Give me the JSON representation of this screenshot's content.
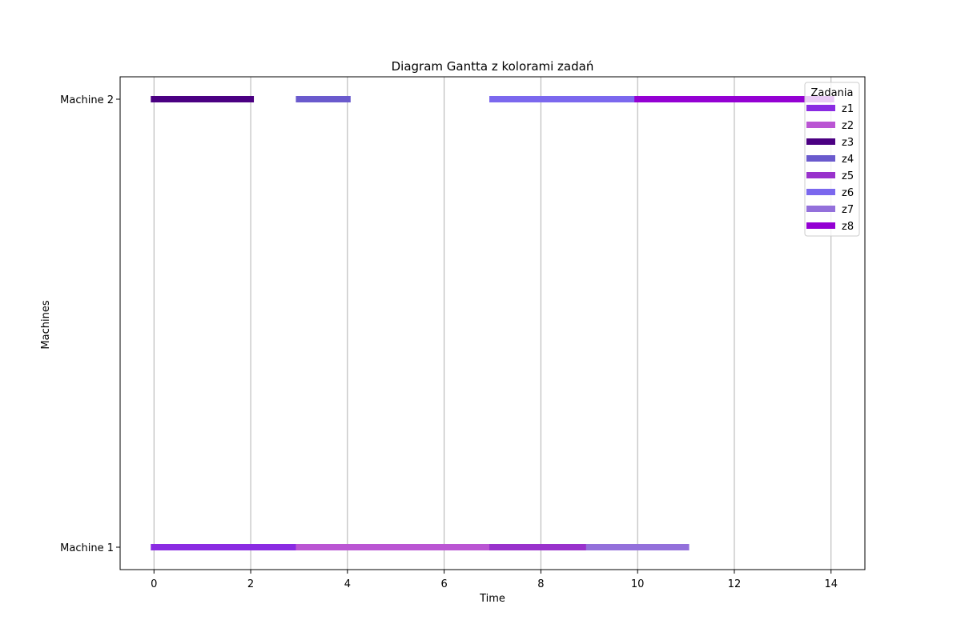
{
  "chart_data": {
    "type": "gantt",
    "title": "Diagram Gantta z kolorami zadań",
    "xlabel": "Time",
    "ylabel": "Machines",
    "xlim": [
      -0.7,
      14.7
    ],
    "xticks": [
      0,
      2,
      4,
      6,
      8,
      10,
      12,
      14
    ],
    "grid": "vertical",
    "machines": [
      "Machine 1",
      "Machine 2"
    ],
    "legend": {
      "title": "Zadania",
      "placement": "top-right",
      "entries": [
        "z1",
        "z2",
        "z3",
        "z4",
        "z5",
        "z6",
        "z7",
        "z8"
      ]
    },
    "task_colors": {
      "z1": "#8a2be2",
      "z2": "#ba55d3",
      "z3": "#4b0082",
      "z4": "#6a5acd",
      "z5": "#9932cc",
      "z6": "#7b68ee",
      "z7": "#9370db",
      "z8": "#9400d3"
    },
    "segments": [
      {
        "machine": "Machine 1",
        "task": "z1",
        "start": 0,
        "end": 3
      },
      {
        "machine": "Machine 1",
        "task": "z2",
        "start": 3,
        "end": 7
      },
      {
        "machine": "Machine 1",
        "task": "z5",
        "start": 7,
        "end": 9
      },
      {
        "machine": "Machine 1",
        "task": "z7",
        "start": 9,
        "end": 11
      },
      {
        "machine": "Machine 2",
        "task": "z3",
        "start": 0,
        "end": 2
      },
      {
        "machine": "Machine 2",
        "task": "z4",
        "start": 3,
        "end": 4
      },
      {
        "machine": "Machine 2",
        "task": "z6",
        "start": 7,
        "end": 10
      },
      {
        "machine": "Machine 2",
        "task": "z8",
        "start": 10,
        "end": 14
      }
    ]
  }
}
